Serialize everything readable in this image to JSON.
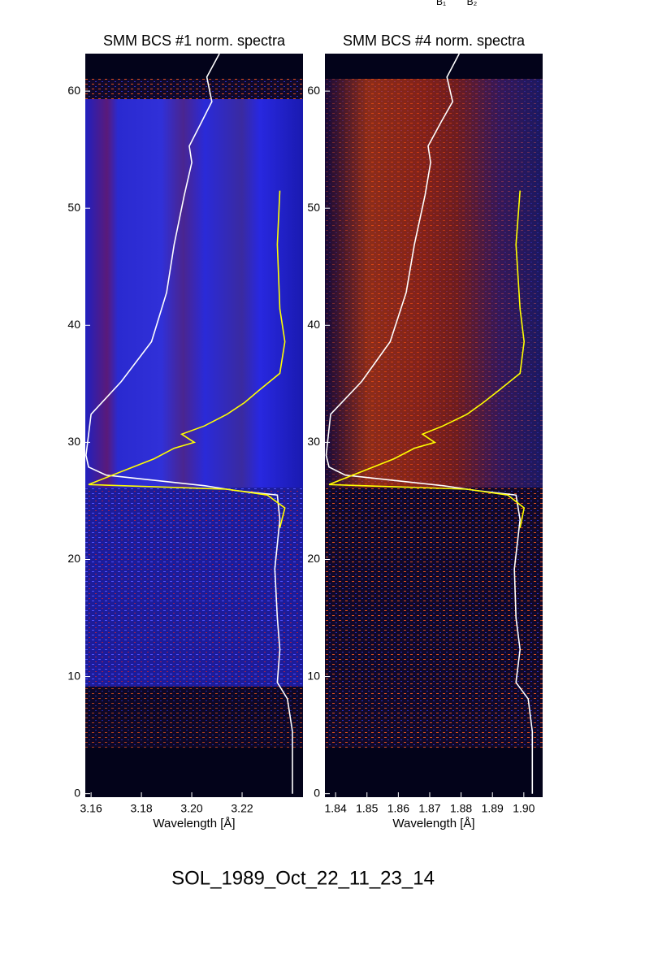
{
  "header_labels": [
    "B₁",
    "B₂"
  ],
  "chart_data": [
    {
      "type": "line",
      "title": "SMM BCS #1 norm. spectra",
      "xlabel": "Wavelength [Å]",
      "xlim": [
        3.1577,
        3.2442
      ],
      "xticks": [
        3.16,
        3.18,
        {
          "value": 3.2,
          "label": "3.20"
        },
        3.22
      ],
      "ylim": [
        -0.3,
        63.2
      ],
      "yticks": [
        0,
        10,
        20,
        30,
        40,
        50,
        60
      ],
      "series": [
        {
          "color": "#ffffff",
          "x": [
            3.211,
            3.206,
            3.208,
            3.204,
            3.199,
            3.2,
            3.197,
            3.193,
            3.19,
            3.184,
            3.172,
            3.16,
            3.158,
            3.159,
            3.166,
            3.205,
            3.217,
            3.234,
            3.235,
            3.233,
            3.234,
            3.235,
            3.234,
            3.238,
            3.24,
            3.24
          ],
          "values": [
            63.2,
            61.2,
            59.1,
            57.4,
            55.3,
            53.9,
            51.1,
            46.9,
            42.8,
            38.6,
            35.2,
            32.4,
            28.9,
            27.9,
            27.2,
            26.3,
            25.9,
            25.5,
            23.4,
            19.2,
            15.0,
            12.3,
            9.5,
            8.1,
            5.3,
            0
          ]
        },
        {
          "color": "#ffff00",
          "x": [
            3.235,
            3.237,
            3.23,
            3.214,
            3.159,
            3.172,
            3.185,
            3.193,
            3.201,
            3.196,
            3.205,
            3.214,
            3.221,
            3.227,
            3.235,
            3.237,
            3.235,
            3.234,
            3.235
          ],
          "values": [
            22.7,
            24.4,
            25.5,
            26.0,
            26.4,
            27.5,
            28.6,
            29.5,
            30.0,
            30.7,
            31.4,
            32.4,
            33.4,
            34.5,
            35.9,
            38.6,
            41.4,
            46.9,
            51.5
          ]
        }
      ]
    },
    {
      "type": "line",
      "title": "SMM BCS #4 norm. spectra",
      "xlabel": "Wavelength [Å]",
      "xlim": [
        1.8366,
        1.906
      ],
      "xticks": [
        1.84,
        1.85,
        1.86,
        1.87,
        1.88,
        1.89,
        {
          "value": 1.9,
          "label": "1.90"
        }
      ],
      "ylim": [
        -0.3,
        63.2
      ],
      "yticks": [
        0,
        10,
        20,
        30,
        40,
        50,
        60
      ],
      "series": [
        {
          "color": "#ffffff",
          "x": [
            1.8794,
            1.8755,
            1.8773,
            1.8737,
            1.8695,
            1.8703,
            1.8685,
            1.8651,
            1.8625,
            1.8574,
            1.8483,
            1.8384,
            1.837,
            1.8379,
            1.8431,
            1.8742,
            1.8846,
            1.8975,
            1.8988,
            1.897,
            1.8975,
            1.8988,
            1.8975,
            1.9014,
            1.9027,
            1.9027
          ],
          "values": [
            63.2,
            61.2,
            59.1,
            57.4,
            55.3,
            53.9,
            51.1,
            46.9,
            42.8,
            38.6,
            35.2,
            32.4,
            28.9,
            27.9,
            27.2,
            26.3,
            25.9,
            25.5,
            23.4,
            19.2,
            15.0,
            12.3,
            9.5,
            8.1,
            5.3,
            0
          ]
        },
        {
          "color": "#ffff00",
          "x": [
            1.8988,
            1.9001,
            1.8949,
            1.8819,
            1.8379,
            1.8483,
            1.8586,
            1.8651,
            1.8716,
            1.8677,
            1.8742,
            1.8819,
            1.8871,
            1.8923,
            1.8988,
            1.9001,
            1.8988,
            1.8975,
            1.8988
          ],
          "values": [
            22.7,
            24.4,
            25.5,
            26.0,
            26.4,
            27.5,
            28.6,
            29.5,
            30.0,
            30.7,
            31.4,
            32.4,
            33.4,
            34.5,
            35.9,
            38.6,
            41.4,
            46.9,
            51.5
          ]
        }
      ]
    }
  ],
  "footer": "SOL_1989_Oct_22_11_23_14"
}
